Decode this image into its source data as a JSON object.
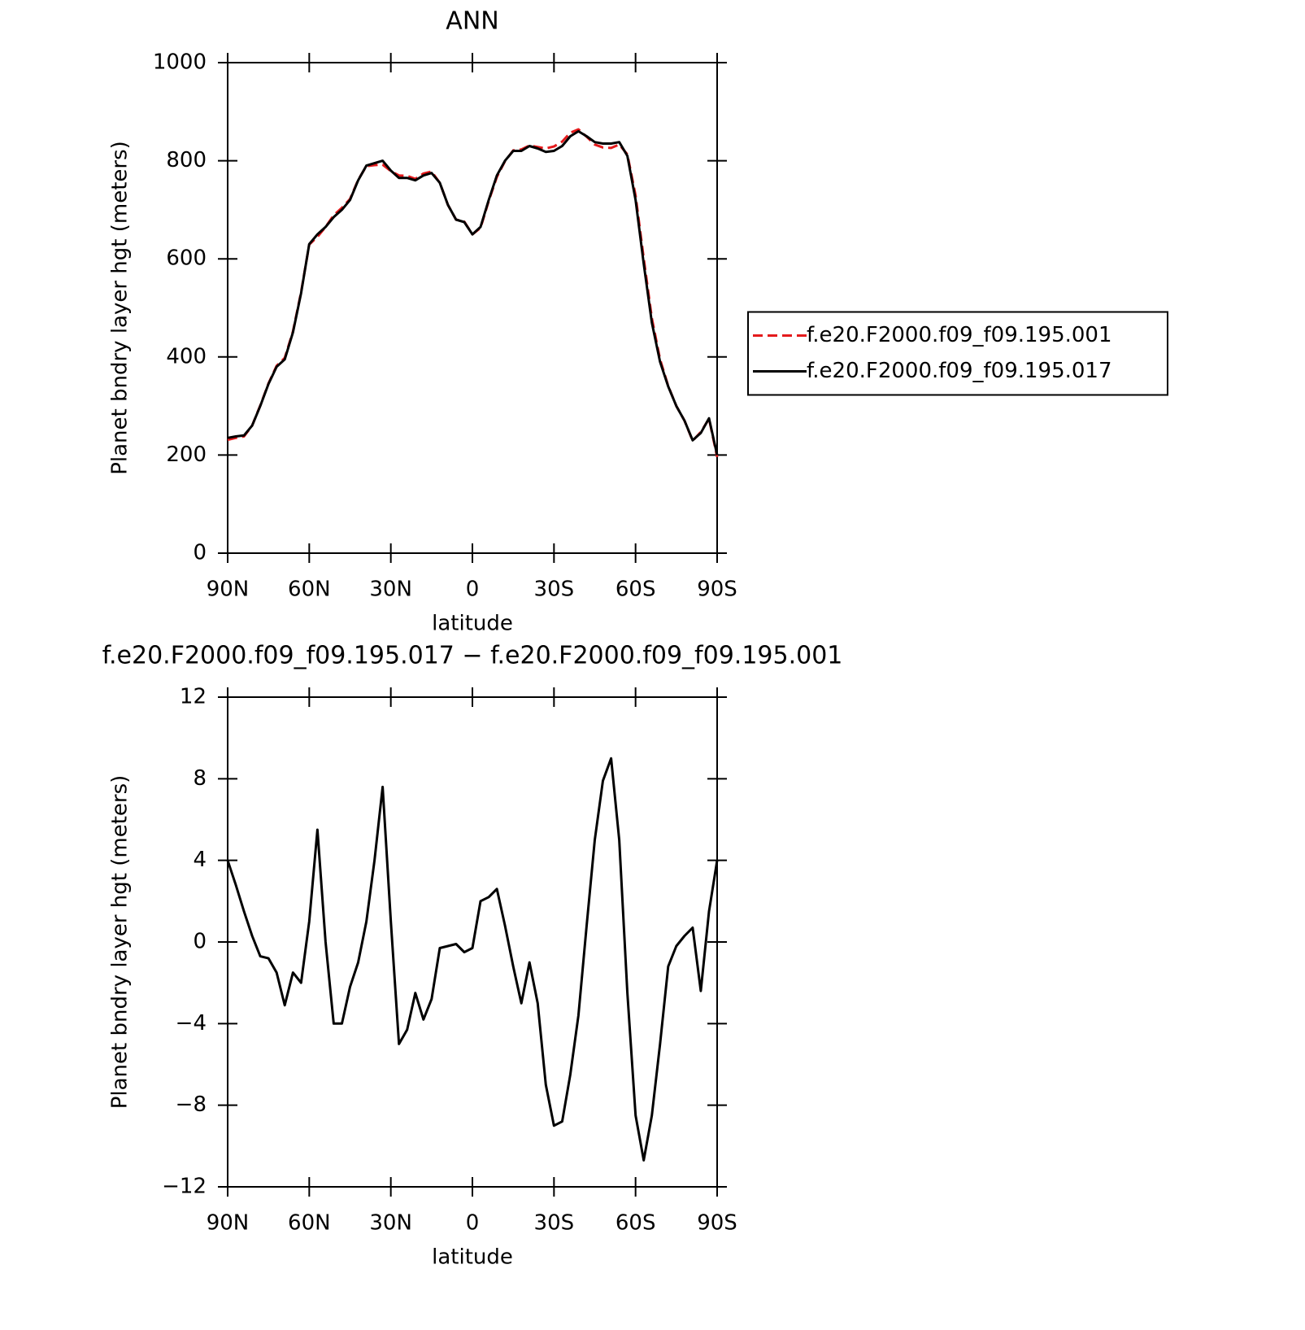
{
  "chart_data": [
    {
      "type": "line",
      "title": "ANN",
      "xlabel": "latitude",
      "ylabel": "Planet bndry layer hgt (meters)",
      "x": [
        90,
        87,
        84,
        81,
        78,
        75,
        72,
        69,
        66,
        63,
        60,
        57,
        54,
        51,
        48,
        45,
        42,
        39,
        36,
        33,
        30,
        27,
        24,
        21,
        18,
        15,
        12,
        9,
        6,
        3,
        0,
        -3,
        -6,
        -9,
        -12,
        -15,
        -18,
        -21,
        -24,
        -27,
        -30,
        -33,
        -36,
        -39,
        -42,
        -45,
        -48,
        -51,
        -54,
        -57,
        -60,
        -63,
        -66,
        -69,
        -72,
        -75,
        -78,
        -81,
        -84,
        -87,
        -90
      ],
      "series": [
        {
          "name": "f.e20.F2000.f09_f09.195.001",
          "color": "#e41a1c",
          "line_style": "dashed",
          "values": [
            231,
            235,
            238,
            260,
            301,
            346,
            382,
            398,
            452,
            532,
            629,
            645,
            665,
            689,
            704,
            722,
            761,
            789,
            791,
            792,
            779,
            770,
            769,
            763,
            774,
            778,
            755,
            710,
            680,
            676,
            650,
            663,
            718,
            767,
            799,
            821,
            823,
            831,
            828,
            825,
            829,
            839,
            857,
            864,
            849,
            833,
            827,
            826,
            833,
            813,
            729,
            601,
            479,
            395,
            341,
            300,
            270,
            229,
            247,
            274,
            196
          ]
        },
        {
          "name": "f.e20.F2000.f09_f09.195.017",
          "color": "#000000",
          "line_style": "solid",
          "values": [
            235,
            238,
            240,
            260,
            300,
            345,
            380,
            395,
            450,
            530,
            630,
            650,
            665,
            685,
            700,
            720,
            760,
            790,
            795,
            800,
            780,
            765,
            765,
            760,
            770,
            775,
            755,
            710,
            680,
            675,
            650,
            665,
            720,
            770,
            800,
            820,
            820,
            830,
            825,
            818,
            820,
            830,
            850,
            860,
            850,
            838,
            835,
            835,
            838,
            810,
            720,
            590,
            470,
            390,
            340,
            300,
            270,
            230,
            245,
            275,
            200
          ]
        }
      ],
      "xlim": [
        90,
        -90
      ],
      "xticks": [
        {
          "value": 90,
          "label": "90N"
        },
        {
          "value": 60,
          "label": "60N"
        },
        {
          "value": 30,
          "label": "30N"
        },
        0,
        {
          "value": -30,
          "label": "30S"
        },
        {
          "value": -60,
          "label": "60S"
        },
        {
          "value": -90,
          "label": "90S"
        }
      ],
      "ylim": [
        0,
        1000
      ],
      "yticks": [
        0,
        200,
        400,
        600,
        800,
        1000
      ],
      "legend": "right"
    },
    {
      "type": "line",
      "title": "f.e20.F2000.f09_f09.195.017 − f.e20.F2000.f09_f09.195.001",
      "xlabel": "latitude",
      "ylabel": "Planet bndry layer hgt (meters)",
      "x": [
        90,
        87,
        84,
        81,
        78,
        75,
        72,
        69,
        66,
        63,
        60,
        57,
        54,
        51,
        48,
        45,
        42,
        39,
        36,
        33,
        30,
        27,
        24,
        21,
        18,
        15,
        12,
        9,
        6,
        3,
        0,
        -3,
        -6,
        -9,
        -12,
        -15,
        -18,
        -21,
        -24,
        -27,
        -30,
        -33,
        -36,
        -39,
        -42,
        -45,
        -48,
        -51,
        -54,
        -57,
        -60,
        -63,
        -66,
        -69,
        -72,
        -75,
        -78,
        -81,
        -84,
        -87,
        -90
      ],
      "series": [
        {
          "color": "#000000",
          "line_style": "solid",
          "values": [
            4,
            2.8,
            1.5,
            0.3,
            -0.7,
            -0.8,
            -1.5,
            -3.1,
            -1.5,
            -2,
            1,
            5.5,
            0,
            -4,
            -4,
            -2.2,
            -1,
            1,
            4,
            7.6,
            1,
            -5,
            -4.3,
            -2.5,
            -3.8,
            -2.8,
            -0.3,
            -0.2,
            -0.1,
            -0.5,
            -0.3,
            2,
            2.2,
            2.6,
            0.8,
            -1.2,
            -3,
            -1,
            -3,
            -7,
            -9,
            -8.8,
            -6.5,
            -3.6,
            0.8,
            5,
            7.9,
            9,
            5,
            -2.5,
            -8.5,
            -10.7,
            -8.5,
            -5,
            -1.2,
            -0.2,
            0.3,
            0.7,
            -2.4,
            1.5,
            4
          ]
        }
      ],
      "xlim": [
        90,
        -90
      ],
      "xticks": [
        {
          "value": 90,
          "label": "90N"
        },
        {
          "value": 60,
          "label": "60N"
        },
        {
          "value": 30,
          "label": "30N"
        },
        0,
        {
          "value": -30,
          "label": "30S"
        },
        {
          "value": -60,
          "label": "60S"
        },
        {
          "value": -90,
          "label": "90S"
        }
      ],
      "ylim": [
        -12,
        12
      ],
      "yticks": [
        {
          "value": -12,
          "label": "−12"
        },
        {
          "value": -8,
          "label": "−8"
        },
        {
          "value": -4,
          "label": "−4"
        },
        0,
        4,
        8,
        12
      ]
    }
  ]
}
